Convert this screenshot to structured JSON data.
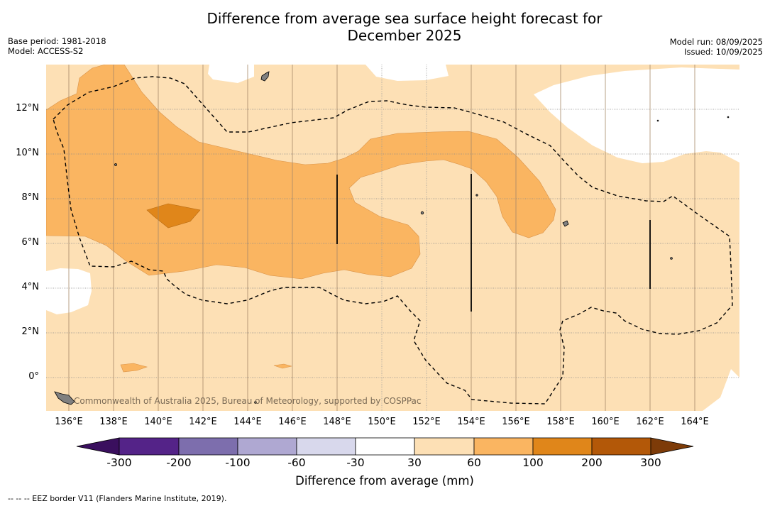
{
  "header": {
    "title_line1": "Difference from average sea surface height forecast for",
    "title_line2": "December 2025",
    "base_period": "Base period: 1981-2018",
    "model": "Model: ACCESS-S2",
    "model_run": "Model run: 08/09/2025",
    "issued": "Issued: 10/09/2025"
  },
  "map": {
    "lon_labels": [
      "136°E",
      "138°E",
      "140°E",
      "142°E",
      "144°E",
      "146°E",
      "148°E",
      "150°E",
      "152°E",
      "154°E",
      "156°E",
      "158°E",
      "160°E",
      "162°E",
      "164°E"
    ],
    "lat_labels": [
      "12°N",
      "10°N",
      "8°N",
      "6°N",
      "4°N",
      "2°N",
      "0°"
    ],
    "credit": "Commonwealth of Australia 2025, Bureau of Meteorology, supported by COSPPac",
    "colors": {
      "c30_60": "#fde0b5",
      "c60_100": "#fab561",
      "c100_200": "#e0861a",
      "land": "#808080",
      "no_data": "#ffffff"
    }
  },
  "legend": {
    "title": "Difference from average (mm)",
    "ticks": [
      "-300",
      "-200",
      "-100",
      "-60",
      "-30",
      "30",
      "60",
      "100",
      "200",
      "300"
    ],
    "colors": [
      "#3a0f5e",
      "#542388",
      "#7d6ead",
      "#afa8d2",
      "#d8d8ec",
      "#ffffff",
      "#fde0b5",
      "#fab561",
      "#e0861a",
      "#b35808",
      "#7d3b08"
    ]
  },
  "footnote": "--  --  -- EEZ border V11 (Flanders Marine Institute, 2019)."
}
